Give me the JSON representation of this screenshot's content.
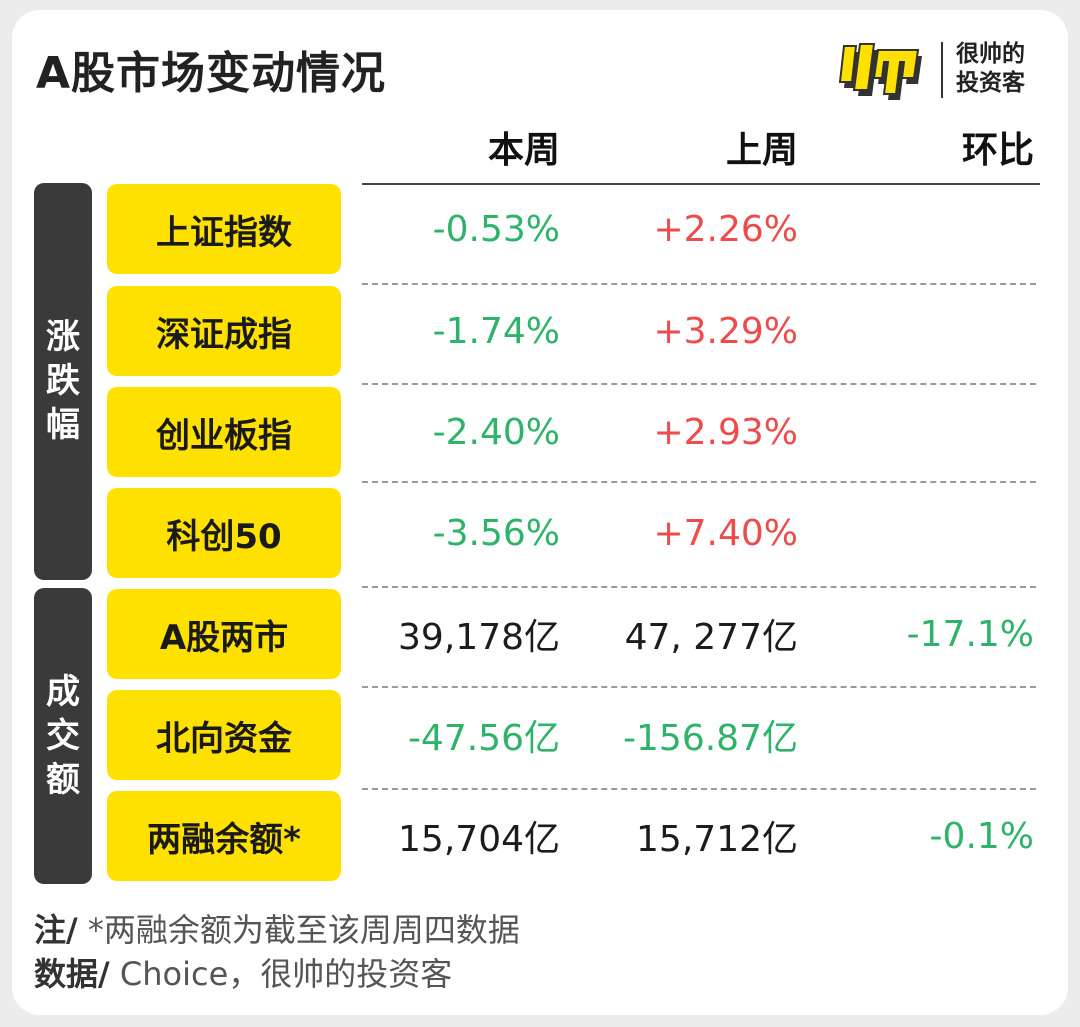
{
  "title": "A股市场变动情况",
  "logo": {
    "line1": "很帅的",
    "line2": "投资客"
  },
  "columns": {
    "current": "本周",
    "previous": "上周",
    "ratio": "环比"
  },
  "groups": {
    "change": "涨跌幅",
    "volume": "成交额"
  },
  "rows": [
    {
      "label": "上证指数",
      "current": "-0.53%",
      "previous": "+2.26%",
      "ratio": ""
    },
    {
      "label": "深证成指",
      "current": "-1.74%",
      "previous": "+3.29%",
      "ratio": ""
    },
    {
      "label": "创业板指",
      "current": "-2.40%",
      "previous": "+2.93%",
      "ratio": ""
    },
    {
      "label": "科创50",
      "current": "-3.56%",
      "previous": "+7.40%",
      "ratio": ""
    },
    {
      "label": "A股两市",
      "current": "39,178亿",
      "previous": "47, 277亿",
      "ratio": "-17.1%"
    },
    {
      "label": "北向资金",
      "current": "-47.56亿",
      "previous": "-156.87亿",
      "ratio": ""
    },
    {
      "label": "两融余额*",
      "current": "15,704亿",
      "previous": "15,712亿",
      "ratio": "-0.1%"
    }
  ],
  "notes": {
    "note_prefix": "注/",
    "note_text": " *两融余额为截至该周周四数据",
    "source_prefix": "数据/",
    "source_text": " Choice，很帅的投资客"
  },
  "colors": {
    "accent": "#ffe100",
    "dark": "#3a3a3a",
    "negative": "#2fb36a",
    "positive": "#ee4b4b"
  }
}
